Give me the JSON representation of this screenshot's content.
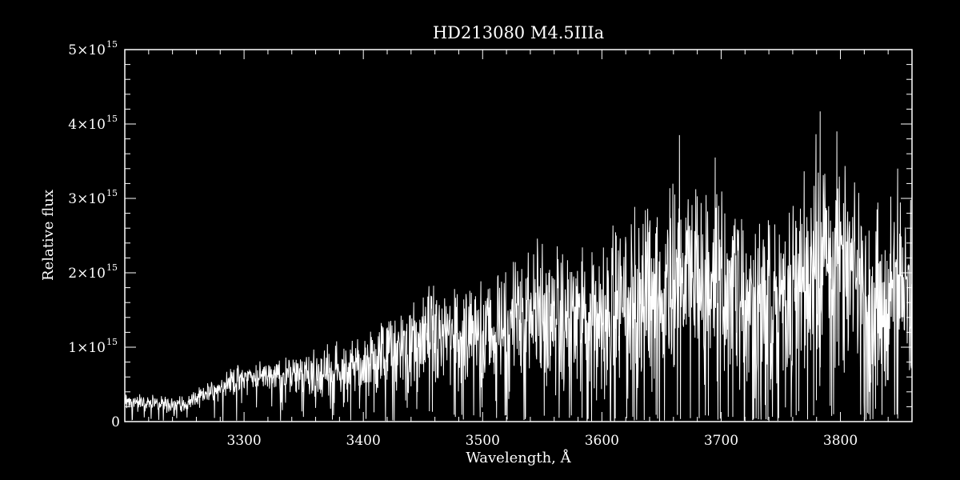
{
  "chart_data": {
    "type": "line",
    "title": "HD213080   M4.5IIIa",
    "xlabel": "Wavelength, Å",
    "ylabel": "Relative flux",
    "xlim": [
      3200,
      3860
    ],
    "ylim": [
      0,
      5000000000000000.0
    ],
    "xticks": [
      3300,
      3400,
      3500,
      3600,
      3700,
      3800
    ],
    "xtick_labels": [
      "3300",
      "3400",
      "3500",
      "3600",
      "3700",
      "3800"
    ],
    "yticks": [
      {
        "value": 0,
        "label": "0",
        "exp": ""
      },
      {
        "value": 1000000000000000.0,
        "label": "1×10",
        "exp": "15"
      },
      {
        "value": 2000000000000000.0,
        "label": "2×10",
        "exp": "15"
      },
      {
        "value": 3000000000000000.0,
        "label": "3×10",
        "exp": "15"
      },
      {
        "value": 4000000000000000.0,
        "label": "4×10",
        "exp": "15"
      },
      {
        "value": 5000000000000000.0,
        "label": "5×10",
        "exp": "15"
      }
    ],
    "grid": false,
    "series": [
      {
        "color": "#ffffff",
        "envelope": [
          {
            "x": 3200,
            "lo": 100000000000000.0,
            "hi": 400000000000000.0
          },
          {
            "x": 3250,
            "lo": 80000000000000.0,
            "hi": 350000000000000.0
          },
          {
            "x": 3290,
            "lo": 300000000000000.0,
            "hi": 750000000000000.0
          },
          {
            "x": 3320,
            "lo": 400000000000000.0,
            "hi": 850000000000000.0
          },
          {
            "x": 3350,
            "lo": 200000000000000.0,
            "hi": 950000000000000.0
          },
          {
            "x": 3400,
            "lo": 200000000000000.0,
            "hi": 1250000000000000.0
          },
          {
            "x": 3430,
            "lo": 200000000000000.0,
            "hi": 1600000000000000.0
          },
          {
            "x": 3460,
            "lo": 150000000000000.0,
            "hi": 1900000000000000.0
          },
          {
            "x": 3500,
            "lo": 100000000000000.0,
            "hi": 2000000000000000.0
          },
          {
            "x": 3540,
            "lo": 100000000000000.0,
            "hi": 2600000000000000.0
          },
          {
            "x": 3570,
            "lo": 100000000000000.0,
            "hi": 2300000000000000.0
          },
          {
            "x": 3600,
            "lo": 50000000000000.0,
            "hi": 2600000000000000.0
          },
          {
            "x": 3630,
            "lo": 100000000000000.0,
            "hi": 3000000000000000.0
          },
          {
            "x": 3660,
            "lo": 100000000000000.0,
            "hi": 3500000000000000.0
          },
          {
            "x": 3700,
            "lo": 100000000000000.0,
            "hi": 3300000000000000.0
          },
          {
            "x": 3730,
            "lo": 50000000000000.0,
            "hi": 2900000000000000.0
          },
          {
            "x": 3760,
            "lo": 100000000000000.0,
            "hi": 2900000000000000.0
          },
          {
            "x": 3780,
            "lo": 300000000000000.0,
            "hi": 4000000000000000.0
          },
          {
            "x": 3800,
            "lo": 200000000000000.0,
            "hi": 3600000000000000.0
          },
          {
            "x": 3830,
            "lo": 100000000000000.0,
            "hi": 3000000000000000.0
          },
          {
            "x": 3860,
            "lo": 100000000000000.0,
            "hi": 3400000000000000.0
          }
        ],
        "peaks": [
          {
            "x": 3612,
            "y": 2500000000000000.0
          },
          {
            "x": 3665,
            "y": 3850000000000000.0
          },
          {
            "x": 3695,
            "y": 3550000000000000.0
          },
          {
            "x": 3745,
            "y": 2650000000000000.0
          },
          {
            "x": 3783,
            "y": 4170000000000000.0
          },
          {
            "x": 3797,
            "y": 3900000000000000.0
          },
          {
            "x": 3848,
            "y": 3400000000000000.0
          }
        ]
      }
    ]
  }
}
